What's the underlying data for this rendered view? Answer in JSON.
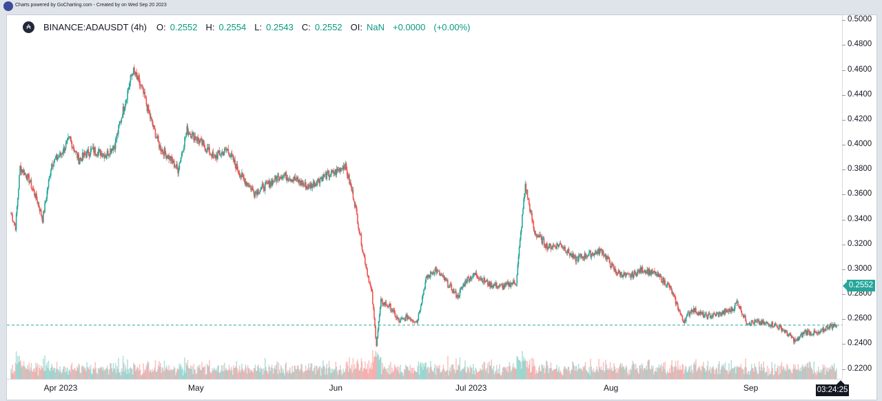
{
  "header": {
    "credit": "Charts powered by GoCharting.com - Created by  on Wed Sep 20 2023"
  },
  "legend": {
    "symbol": "BINANCE:ADAUSDT (4h)",
    "open_label": "O:",
    "open": "0.2552",
    "high_label": "H:",
    "high": "0.2554",
    "low_label": "L:",
    "low": "0.2543",
    "close_label": "C:",
    "close": "0.2552",
    "oi_label": "OI:",
    "oi": "NaN",
    "change": "+0.0000",
    "change_pct": "(+0.00%)"
  },
  "price_tag": "0.2552",
  "countdown": "03:24:25",
  "colors": {
    "up": "#26a69a",
    "down": "#ef5350",
    "accent": "#26a69a"
  },
  "chart_data": {
    "type": "candlestick",
    "interval": "4h",
    "x_ticks": [
      "Apr 2023",
      "May",
      "Jun",
      "Jul 2023",
      "Aug",
      "Sep"
    ],
    "y_ticks": [
      "0.5000",
      "0.4800",
      "0.4600",
      "0.4400",
      "0.4200",
      "0.4000",
      "0.3800",
      "0.3600",
      "0.3400",
      "0.3200",
      "0.3000",
      "0.2800",
      "0.2600",
      "0.2400",
      "0.2200"
    ],
    "ylim": [
      0.212,
      0.504
    ],
    "current_price": 0.2552,
    "close_path": [
      {
        "date": "2023-03-21",
        "close": 0.345
      },
      {
        "date": "2023-03-22",
        "close": 0.334
      },
      {
        "date": "2023-03-23",
        "close": 0.382
      },
      {
        "date": "2023-03-25",
        "close": 0.372
      },
      {
        "date": "2023-03-27",
        "close": 0.353
      },
      {
        "date": "2023-03-28",
        "close": 0.34
      },
      {
        "date": "2023-03-30",
        "close": 0.385
      },
      {
        "date": "2023-04-01",
        "close": 0.392
      },
      {
        "date": "2023-04-03",
        "close": 0.405
      },
      {
        "date": "2023-04-05",
        "close": 0.388
      },
      {
        "date": "2023-04-08",
        "close": 0.396
      },
      {
        "date": "2023-04-11",
        "close": 0.392
      },
      {
        "date": "2023-04-13",
        "close": 0.4
      },
      {
        "date": "2023-04-15",
        "close": 0.43
      },
      {
        "date": "2023-04-17",
        "close": 0.46
      },
      {
        "date": "2023-04-19",
        "close": 0.445
      },
      {
        "date": "2023-04-21",
        "close": 0.42
      },
      {
        "date": "2023-04-23",
        "close": 0.398
      },
      {
        "date": "2023-04-25",
        "close": 0.39
      },
      {
        "date": "2023-04-27",
        "close": 0.38
      },
      {
        "date": "2023-04-29",
        "close": 0.412
      },
      {
        "date": "2023-05-02",
        "close": 0.402
      },
      {
        "date": "2023-05-05",
        "close": 0.39
      },
      {
        "date": "2023-05-08",
        "close": 0.396
      },
      {
        "date": "2023-05-11",
        "close": 0.375
      },
      {
        "date": "2023-05-14",
        "close": 0.362
      },
      {
        "date": "2023-05-17",
        "close": 0.368
      },
      {
        "date": "2023-05-20",
        "close": 0.376
      },
      {
        "date": "2023-05-23",
        "close": 0.372
      },
      {
        "date": "2023-05-26",
        "close": 0.366
      },
      {
        "date": "2023-05-29",
        "close": 0.374
      },
      {
        "date": "2023-06-01",
        "close": 0.378
      },
      {
        "date": "2023-06-03",
        "close": 0.384
      },
      {
        "date": "2023-06-05",
        "close": 0.357
      },
      {
        "date": "2023-06-07",
        "close": 0.315
      },
      {
        "date": "2023-06-09",
        "close": 0.28
      },
      {
        "date": "2023-06-10",
        "close": 0.24
      },
      {
        "date": "2023-06-11",
        "close": 0.274
      },
      {
        "date": "2023-06-13",
        "close": 0.27
      },
      {
        "date": "2023-06-15",
        "close": 0.258
      },
      {
        "date": "2023-06-17",
        "close": 0.262
      },
      {
        "date": "2023-06-19",
        "close": 0.258
      },
      {
        "date": "2023-06-21",
        "close": 0.292
      },
      {
        "date": "2023-06-23",
        "close": 0.3
      },
      {
        "date": "2023-06-25",
        "close": 0.292
      },
      {
        "date": "2023-06-28",
        "close": 0.278
      },
      {
        "date": "2023-06-30",
        "close": 0.292
      },
      {
        "date": "2023-07-02",
        "close": 0.296
      },
      {
        "date": "2023-07-05",
        "close": 0.288
      },
      {
        "date": "2023-07-08",
        "close": 0.286
      },
      {
        "date": "2023-07-11",
        "close": 0.29
      },
      {
        "date": "2023-07-13",
        "close": 0.368
      },
      {
        "date": "2023-07-15",
        "close": 0.33
      },
      {
        "date": "2023-07-18",
        "close": 0.318
      },
      {
        "date": "2023-07-21",
        "close": 0.32
      },
      {
        "date": "2023-07-24",
        "close": 0.308
      },
      {
        "date": "2023-07-27",
        "close": 0.312
      },
      {
        "date": "2023-07-30",
        "close": 0.315
      },
      {
        "date": "2023-08-02",
        "close": 0.298
      },
      {
        "date": "2023-08-05",
        "close": 0.294
      },
      {
        "date": "2023-08-08",
        "close": 0.3
      },
      {
        "date": "2023-08-11",
        "close": 0.296
      },
      {
        "date": "2023-08-14",
        "close": 0.286
      },
      {
        "date": "2023-08-16",
        "close": 0.268
      },
      {
        "date": "2023-08-17",
        "close": 0.258
      },
      {
        "date": "2023-08-19",
        "close": 0.268
      },
      {
        "date": "2023-08-22",
        "close": 0.262
      },
      {
        "date": "2023-08-25",
        "close": 0.264
      },
      {
        "date": "2023-08-28",
        "close": 0.268
      },
      {
        "date": "2023-08-29",
        "close": 0.274
      },
      {
        "date": "2023-08-31",
        "close": 0.258
      },
      {
        "date": "2023-09-03",
        "close": 0.257
      },
      {
        "date": "2023-09-06",
        "close": 0.256
      },
      {
        "date": "2023-09-08",
        "close": 0.252
      },
      {
        "date": "2023-09-11",
        "close": 0.242
      },
      {
        "date": "2023-09-13",
        "close": 0.25
      },
      {
        "date": "2023-09-16",
        "close": 0.248
      },
      {
        "date": "2023-09-18",
        "close": 0.254
      },
      {
        "date": "2023-09-20",
        "close": 0.2552
      }
    ]
  }
}
